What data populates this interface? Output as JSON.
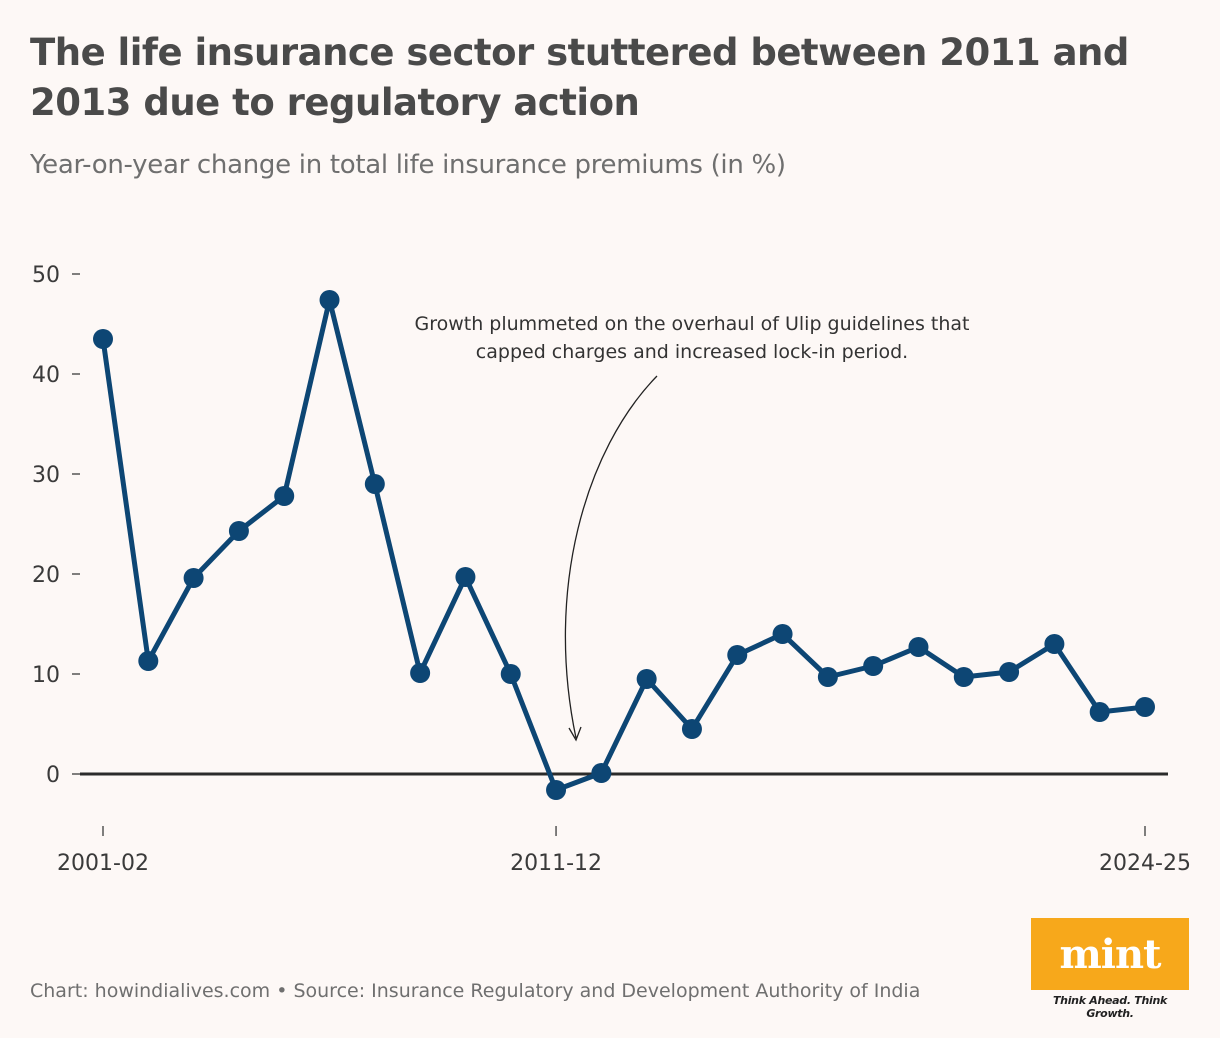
{
  "header": {
    "title": "The life insurance sector stuttered between 2011 and 2013 due to regulatory action",
    "subtitle": "Year-on-year change in total life insurance premiums (in %)"
  },
  "chart_data": {
    "type": "line",
    "title": "The life insurance sector stuttered between 2011 and 2013 due to regulatory action",
    "subtitle": "Year-on-year change in total life insurance premiums (in %)",
    "xlabel": "",
    "ylabel": "",
    "x": [
      "2001-02",
      "2002-03",
      "2003-04",
      "2004-05",
      "2005-06",
      "2006-07",
      "2007-08",
      "2008-09",
      "2009-10",
      "2010-11",
      "2011-12",
      "2012-13",
      "2013-14",
      "2014-15",
      "2015-16",
      "2016-17",
      "2017-18",
      "2018-19",
      "2019-20",
      "2020-21",
      "2021-22",
      "2022-23",
      "2023-24",
      "2024-25"
    ],
    "x_tick_labels": [
      "2001-02",
      "2011-12",
      "2024-25"
    ],
    "series": [
      {
        "values": [
          43.5,
          11.3,
          19.6,
          24.3,
          27.8,
          47.4,
          29.0,
          10.1,
          19.7,
          10.0,
          -1.6,
          0.1,
          9.5,
          4.5,
          11.9,
          14.0,
          9.7,
          10.8,
          12.7,
          9.7,
          10.2,
          13.0,
          6.2,
          6.7
        ]
      }
    ],
    "y_ticks": [
      0,
      10,
      20,
      30,
      40,
      50
    ],
    "ylim": [
      -5,
      52
    ],
    "grid": false,
    "legend": "none",
    "annotation": {
      "lines": [
        "Growth plummeted on the overhaul of Ulip guidelines that",
        "capped charges and increased lock-in period."
      ],
      "target_x": "2011-12"
    },
    "colors": {
      "line": "#0d4674",
      "zero_line": "#2b2b2b",
      "text": "#3a3a3a"
    }
  },
  "footer": {
    "source": "Chart: howindialives.com • Source: Insurance Regulatory and Development Authority of India"
  },
  "logo": {
    "word": "mint",
    "tagline": "Think Ahead. Think Growth.",
    "color": "#f7a81b"
  }
}
